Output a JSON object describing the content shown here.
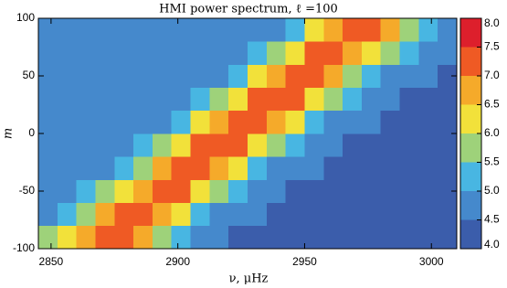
{
  "chart_data": {
    "type": "heatmap",
    "title": "HMI power spectrum, ℓ =100",
    "x_label": "ν, μHz",
    "y_label": "m",
    "xlim": [
      2845,
      3010
    ],
    "ylim": [
      -100,
      100
    ],
    "xticks": [
      2850,
      2900,
      2950,
      3000
    ],
    "yticks": [
      -100,
      -50,
      0,
      50,
      100
    ],
    "x_bins": [
      2845,
      2852.5,
      2860,
      2867.5,
      2875,
      2882.5,
      2890,
      2897.5,
      2905,
      2912.5,
      2920,
      2927.5,
      2935,
      2942.5,
      2950,
      2957.5,
      2965,
      2972.5,
      2980,
      2987.5,
      2995,
      3002.5,
      3010
    ],
    "y_bins": [
      -100,
      -80,
      -60,
      -40,
      -20,
      0,
      20,
      40,
      60,
      80,
      100
    ],
    "z": [
      [
        5.5,
        6.2,
        6.9,
        7.2,
        7.0,
        6.5,
        5.8,
        5.2,
        4.8,
        4.5,
        4.4,
        4.4,
        4.4,
        4.4,
        4.4,
        4.4,
        4.3,
        4.3,
        4.3,
        4.3,
        4.3,
        4.3
      ],
      [
        4.8,
        5.3,
        5.9,
        6.6,
        7.1,
        7.2,
        6.8,
        6.1,
        5.4,
        4.9,
        4.6,
        4.5,
        4.4,
        4.4,
        4.4,
        4.4,
        4.4,
        4.3,
        4.3,
        4.3,
        4.3,
        4.3
      ],
      [
        4.5,
        4.7,
        5.0,
        5.6,
        6.3,
        6.9,
        7.2,
        7.0,
        6.4,
        5.7,
        5.1,
        4.7,
        4.5,
        4.4,
        4.4,
        4.4,
        4.4,
        4.4,
        4.3,
        4.3,
        4.3,
        4.3
      ],
      [
        4.5,
        4.5,
        4.6,
        4.8,
        5.3,
        5.9,
        6.6,
        7.1,
        7.2,
        6.8,
        6.0,
        5.4,
        4.9,
        4.6,
        4.5,
        4.4,
        4.4,
        4.4,
        4.4,
        4.4,
        4.3,
        4.3
      ],
      [
        4.6,
        4.5,
        4.5,
        4.5,
        4.7,
        5.1,
        5.6,
        6.3,
        7.0,
        7.2,
        7.0,
        6.4,
        5.7,
        5.1,
        4.7,
        4.5,
        4.4,
        4.4,
        4.4,
        4.4,
        4.4,
        4.3
      ],
      [
        4.7,
        4.6,
        4.5,
        4.5,
        4.5,
        4.6,
        4.9,
        5.3,
        6.0,
        6.7,
        7.1,
        7.1,
        6.7,
        6.0,
        5.3,
        4.9,
        4.6,
        4.5,
        4.4,
        4.4,
        4.4,
        4.4
      ],
      [
        4.7,
        4.6,
        4.6,
        4.5,
        4.5,
        4.5,
        4.5,
        4.7,
        5.1,
        5.7,
        6.4,
        7.0,
        7.2,
        7.0,
        6.3,
        5.6,
        5.1,
        4.7,
        4.5,
        4.4,
        4.4,
        4.4
      ],
      [
        4.7,
        4.7,
        4.6,
        4.6,
        4.5,
        4.5,
        4.5,
        4.5,
        4.6,
        4.9,
        5.4,
        6.0,
        6.8,
        7.2,
        7.1,
        6.6,
        5.9,
        5.3,
        4.8,
        4.6,
        4.5,
        4.4
      ],
      [
        4.8,
        4.7,
        4.7,
        4.6,
        4.6,
        4.5,
        4.5,
        4.5,
        4.5,
        4.5,
        4.7,
        5.1,
        5.7,
        6.4,
        7.0,
        7.2,
        6.9,
        6.3,
        5.6,
        5.0,
        4.7,
        4.5
      ],
      [
        4.8,
        4.8,
        4.7,
        4.7,
        4.6,
        4.6,
        4.5,
        4.5,
        4.5,
        4.5,
        4.5,
        4.6,
        4.9,
        5.4,
        6.1,
        6.8,
        7.1,
        7.1,
        6.6,
        5.9,
        5.3,
        4.8
      ]
    ],
    "zlim": [
      4.0,
      8.0
    ],
    "zticks": [
      {
        "value": 4,
        "label": "4.0"
      },
      4.5,
      {
        "value": 5,
        "label": "5.0"
      },
      5.5,
      {
        "value": 6,
        "label": "6.0"
      },
      6.5,
      {
        "value": 7,
        "label": "7.0"
      },
      7.5,
      {
        "value": 8,
        "label": "8.0"
      }
    ],
    "colors": [
      "#3b5dab",
      "#4589cc",
      "#48b6e2",
      "#9ed27a",
      "#f2e13a",
      "#f5aa2a",
      "#ef5a24",
      "#dd1f2c"
    ]
  }
}
